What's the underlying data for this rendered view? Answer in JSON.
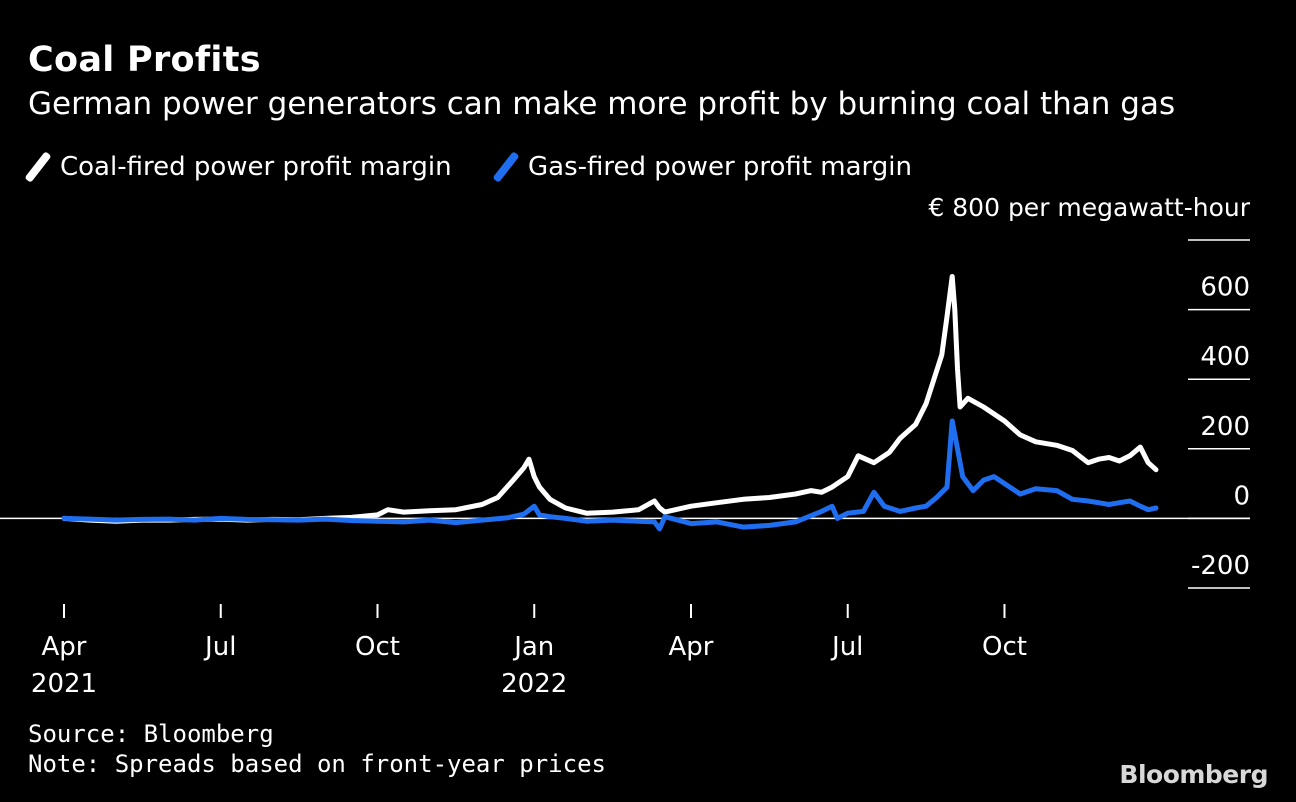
{
  "header": {
    "title": "Coal Profits",
    "subtitle": "German power generators can make more profit by burning coal than gas"
  },
  "legend": {
    "coal_label": "Coal-fired power profit margin",
    "gas_label": "Gas-fired power profit margin"
  },
  "footer": {
    "source": "Source: Bloomberg",
    "note": "Note: Spreads based on front-year prices",
    "brand": "Bloomberg"
  },
  "colors": {
    "background": "#000000",
    "coal": "#ffffff",
    "gas": "#1f6ef0",
    "axis": "#ffffff"
  },
  "chart_data": {
    "type": "line",
    "title": "Coal Profits",
    "subtitle": "German power generators can make more profit by burning coal than gas",
    "ylabel": "€ 800 per megawatt-hour",
    "y_top_label": "€ 800 per megawatt-hour",
    "ylim": [
      -200,
      800
    ],
    "yticks": [
      800,
      600,
      400,
      200,
      0,
      -200
    ],
    "ytick_labels": [
      "600",
      "400",
      "200",
      "0",
      "-200"
    ],
    "xlim": [
      0,
      20.9
    ],
    "x_unit": "months since Apr 1 2021",
    "xticks": [
      {
        "x": 0,
        "label": "Apr",
        "year": "2021"
      },
      {
        "x": 3,
        "label": "Jul",
        "year": ""
      },
      {
        "x": 6,
        "label": "Oct",
        "year": ""
      },
      {
        "x": 9,
        "label": "Jan",
        "year": "2022"
      },
      {
        "x": 12,
        "label": "Apr",
        "year": ""
      },
      {
        "x": 15,
        "label": "Jul",
        "year": ""
      },
      {
        "x": 18,
        "label": "Oct",
        "year": ""
      }
    ],
    "series": [
      {
        "name": "Coal-fired power profit margin",
        "color": "#ffffff",
        "x": [
          0,
          0.5,
          1,
          1.5,
          2,
          2.5,
          3,
          3.5,
          4,
          4.5,
          5,
          5.5,
          6,
          6.2,
          6.5,
          7,
          7.5,
          8,
          8.3,
          8.6,
          8.8,
          8.9,
          9.0,
          9.1,
          9.3,
          9.6,
          10,
          10.5,
          11,
          11.3,
          11.4,
          11.5,
          12,
          12.5,
          13,
          13.5,
          14,
          14.3,
          14.5,
          14.7,
          15,
          15.2,
          15.5,
          15.8,
          16,
          16.3,
          16.5,
          16.8,
          16.9,
          17.0,
          17.05,
          17.1,
          17.15,
          17.3,
          17.6,
          18,
          18.3,
          18.6,
          19,
          19.3,
          19.6,
          19.8,
          20.0,
          20.2,
          20.4,
          20.6,
          20.75,
          20.9
        ],
        "values": [
          0,
          -5,
          -8,
          -5,
          -5,
          -3,
          -2,
          -5,
          -3,
          -4,
          0,
          3,
          10,
          25,
          18,
          22,
          25,
          40,
          60,
          110,
          145,
          170,
          120,
          90,
          55,
          30,
          15,
          18,
          25,
          50,
          30,
          18,
          35,
          45,
          55,
          60,
          70,
          80,
          75,
          90,
          120,
          180,
          160,
          190,
          230,
          270,
          330,
          470,
          580,
          695,
          600,
          430,
          320,
          345,
          320,
          280,
          240,
          220,
          210,
          195,
          160,
          170,
          175,
          165,
          180,
          205,
          160,
          140
        ]
      },
      {
        "name": "Gas-fired power profit margin",
        "color": "#1f6ef0",
        "x": [
          0,
          0.5,
          1,
          1.5,
          2,
          2.5,
          3,
          3.5,
          4,
          4.5,
          5,
          5.5,
          6,
          6.5,
          7,
          7.5,
          8,
          8.5,
          8.8,
          9.0,
          9.1,
          9.3,
          9.6,
          10,
          10.5,
          11,
          11.3,
          11.4,
          11.5,
          12,
          12.5,
          13,
          13.5,
          14,
          14.5,
          14.7,
          14.8,
          15,
          15.3,
          15.5,
          15.7,
          16,
          16.3,
          16.5,
          16.7,
          16.9,
          17.0,
          17.1,
          17.2,
          17.4,
          17.6,
          17.8,
          18,
          18.3,
          18.6,
          19,
          19.3,
          19.6,
          19.8,
          20.0,
          20.2,
          20.4,
          20.6,
          20.75,
          20.9
        ],
        "values": [
          0,
          -2,
          -5,
          -3,
          -2,
          -5,
          0,
          -3,
          -4,
          -5,
          -2,
          -6,
          -8,
          -10,
          -5,
          -12,
          -5,
          2,
          12,
          35,
          10,
          5,
          0,
          -8,
          -5,
          -8,
          -10,
          -30,
          5,
          -15,
          -10,
          -25,
          -20,
          -10,
          20,
          35,
          0,
          15,
          20,
          75,
          35,
          20,
          30,
          35,
          60,
          90,
          280,
          200,
          120,
          80,
          110,
          120,
          100,
          70,
          85,
          80,
          55,
          50,
          45,
          40,
          45,
          50,
          35,
          25,
          30
        ]
      }
    ]
  }
}
